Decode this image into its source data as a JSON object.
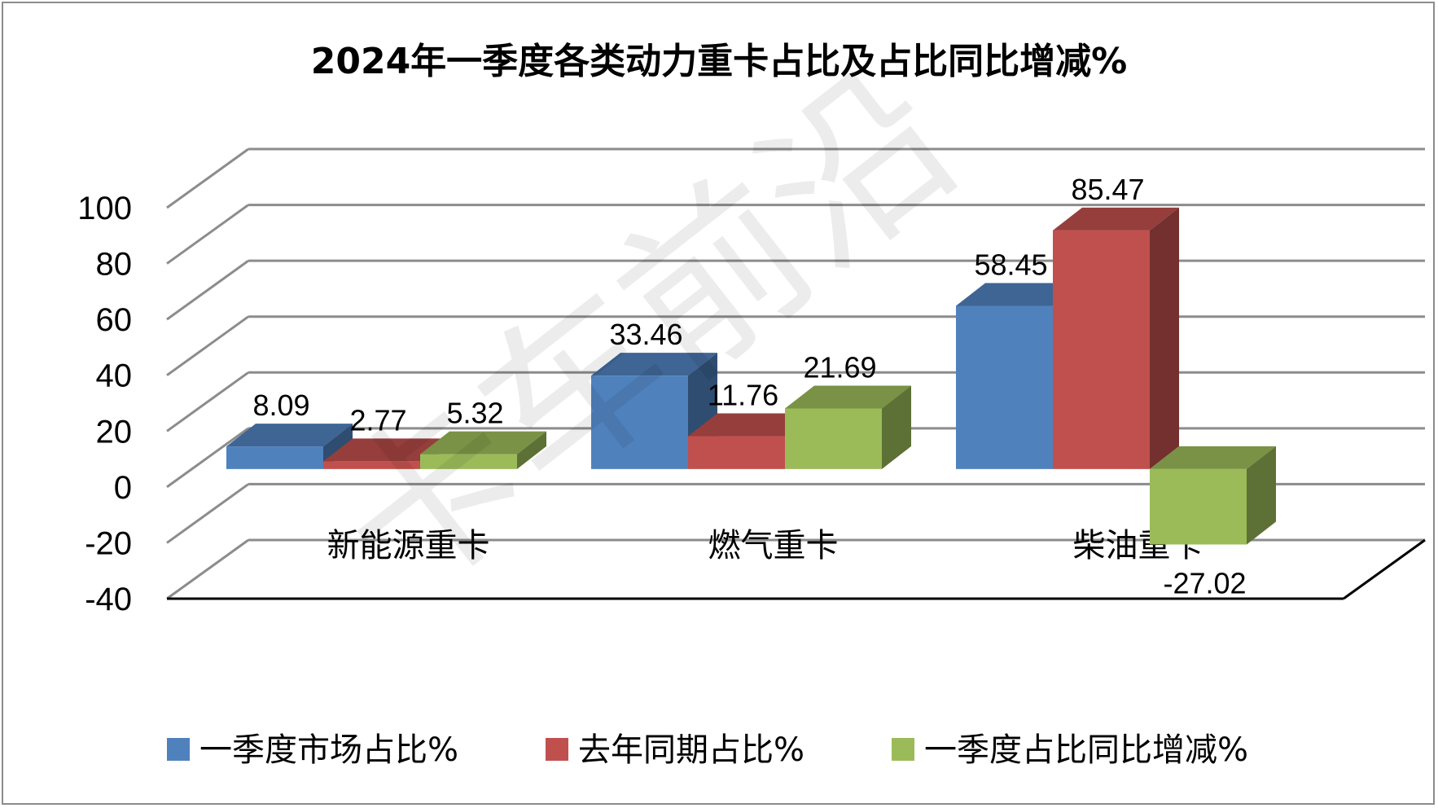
{
  "chart_data": {
    "type": "bar",
    "title": "2024年一季度各类动力重卡占比及占比同比增减%",
    "categories": [
      "新能源重卡",
      "燃气重卡",
      "柴油重卡"
    ],
    "series": [
      {
        "name": "一季度市场占比%",
        "values": [
          8.09,
          33.46,
          58.45
        ],
        "color": "#4f81bd"
      },
      {
        "name": "去年同期占比%",
        "values": [
          2.77,
          11.76,
          85.47
        ],
        "color": "#c0504d"
      },
      {
        "name": "一季度占比同比增减%",
        "values": [
          5.32,
          21.69,
          -27.02
        ],
        "color": "#9bbb59"
      }
    ],
    "ylim": [
      -40,
      100
    ],
    "yticks": [
      -40,
      -20,
      0,
      20,
      40,
      60,
      80,
      100
    ],
    "xlabel": "",
    "ylabel": "",
    "grid": true,
    "legend": "bottom",
    "style": "3d-clustered-column"
  },
  "watermark": "卡车前沿"
}
